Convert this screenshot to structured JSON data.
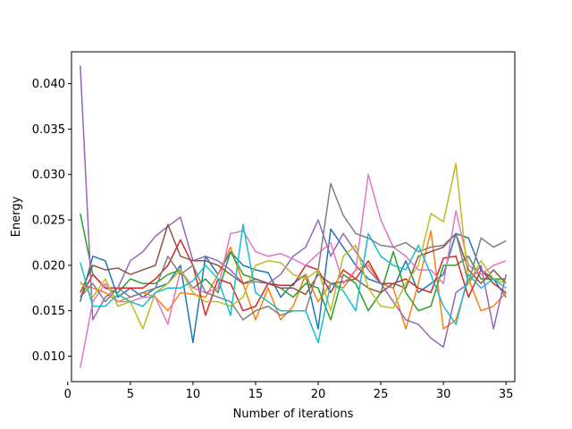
{
  "chart_data": {
    "type": "line",
    "title": "",
    "xlabel": "Number of iterations",
    "ylabel": "Energy",
    "xlim": [
      0.3,
      35.7
    ],
    "ylim": [
      0.0072,
      0.0435
    ],
    "xticks": [
      0,
      5,
      10,
      15,
      20,
      25,
      30,
      35
    ],
    "yticks": [
      0.01,
      0.015,
      0.02,
      0.025,
      0.03,
      0.035,
      0.04
    ],
    "x_tick_labels": [
      "0",
      "5",
      "10",
      "15",
      "20",
      "25",
      "30",
      "35"
    ],
    "y_tick_labels": [
      "0.010",
      "0.015",
      "0.020",
      "0.025",
      "0.030",
      "0.035",
      "0.040"
    ],
    "grid": false,
    "legend": "none",
    "x": [
      1,
      2,
      3,
      4,
      5,
      6,
      7,
      8,
      9,
      10,
      11,
      12,
      13,
      14,
      15,
      16,
      17,
      18,
      19,
      20,
      21,
      22,
      23,
      24,
      25,
      26,
      27,
      28,
      29,
      30,
      31,
      32,
      33,
      34,
      35
    ],
    "series": [
      {
        "color": "#1f77b4",
        "values": [
          0.016,
          0.021,
          0.0205,
          0.0165,
          0.0175,
          0.0165,
          0.0175,
          0.018,
          0.02,
          0.0115,
          0.021,
          0.019,
          0.0215,
          0.02,
          0.0195,
          0.0192,
          0.0165,
          0.018,
          0.019,
          0.013,
          0.024,
          0.022,
          0.02,
          0.0185,
          0.018,
          0.0175,
          0.0205,
          0.017,
          0.018,
          0.019,
          0.0235,
          0.023,
          0.0195,
          0.0185,
          0.0165
        ]
      },
      {
        "color": "#ff7f0e",
        "values": [
          0.018,
          0.0175,
          0.017,
          0.016,
          0.0165,
          0.017,
          0.0165,
          0.015,
          0.017,
          0.0168,
          0.0165,
          0.019,
          0.022,
          0.018,
          0.014,
          0.0175,
          0.014,
          0.0155,
          0.019,
          0.016,
          0.018,
          0.0175,
          0.0195,
          0.02,
          0.018,
          0.0175,
          0.013,
          0.018,
          0.0238,
          0.013,
          0.014,
          0.0185,
          0.015,
          0.0155,
          0.017
        ]
      },
      {
        "color": "#2ca02c",
        "values": [
          0.0257,
          0.019,
          0.0175,
          0.017,
          0.0185,
          0.018,
          0.018,
          0.019,
          0.0195,
          0.0175,
          0.0185,
          0.017,
          0.0215,
          0.019,
          0.0185,
          0.018,
          0.0175,
          0.0165,
          0.018,
          0.0175,
          0.014,
          0.019,
          0.018,
          0.015,
          0.017,
          0.0215,
          0.017,
          0.015,
          0.0155,
          0.02,
          0.02,
          0.021,
          0.0185,
          0.0185,
          0.0185
        ]
      },
      {
        "color": "#d62728",
        "values": [
          0.0165,
          0.019,
          0.0175,
          0.0175,
          0.0175,
          0.0175,
          0.0185,
          0.02,
          0.0228,
          0.02,
          0.0145,
          0.0185,
          0.018,
          0.015,
          0.0155,
          0.018,
          0.0178,
          0.0178,
          0.02,
          0.0195,
          0.017,
          0.0195,
          0.0185,
          0.0205,
          0.018,
          0.018,
          0.0185,
          0.0175,
          0.017,
          0.0208,
          0.021,
          0.0165,
          0.0195,
          0.018,
          0.017
        ]
      },
      {
        "color": "#9467bd",
        "values": [
          0.042,
          0.014,
          0.0165,
          0.0175,
          0.0205,
          0.0215,
          0.0232,
          0.0243,
          0.0253,
          0.0205,
          0.021,
          0.0205,
          0.0195,
          0.018,
          0.0182,
          0.018,
          0.019,
          0.021,
          0.022,
          0.025,
          0.021,
          0.0235,
          0.0215,
          0.0195,
          0.018,
          0.016,
          0.014,
          0.0135,
          0.012,
          0.011,
          0.017,
          0.018,
          0.02,
          0.013,
          0.019
        ]
      },
      {
        "color": "#8c564b",
        "values": [
          0.017,
          0.02,
          0.0195,
          0.0197,
          0.019,
          0.0195,
          0.02,
          0.0245,
          0.021,
          0.0205,
          0.0205,
          0.02,
          0.019,
          0.018,
          0.0185,
          0.018,
          0.0175,
          0.0175,
          0.0168,
          0.019,
          0.018,
          0.0182,
          0.0185,
          0.0175,
          0.017,
          0.018,
          0.0175,
          0.021,
          0.0215,
          0.022,
          0.0235,
          0.0195,
          0.018,
          0.0195,
          0.018
        ]
      },
      {
        "color": "#e377c2",
        "values": [
          0.0087,
          0.016,
          0.018,
          0.016,
          0.016,
          0.0165,
          0.0165,
          0.0135,
          0.0195,
          0.0175,
          0.017,
          0.0175,
          0.0235,
          0.0238,
          0.0215,
          0.021,
          0.0213,
          0.0207,
          0.02,
          0.0213,
          0.0225,
          0.018,
          0.0195,
          0.03,
          0.025,
          0.022,
          0.021,
          0.0195,
          0.0195,
          0.018,
          0.026,
          0.02,
          0.019,
          0.02,
          0.0205
        ]
      },
      {
        "color": "#7f7f7f",
        "values": [
          0.0165,
          0.018,
          0.016,
          0.0175,
          0.0165,
          0.017,
          0.0175,
          0.021,
          0.019,
          0.02,
          0.017,
          0.0165,
          0.016,
          0.014,
          0.015,
          0.0155,
          0.0145,
          0.015,
          0.015,
          0.0195,
          0.029,
          0.0255,
          0.0235,
          0.023,
          0.0222,
          0.022,
          0.0225,
          0.0215,
          0.022,
          0.0222,
          0.0235,
          0.018,
          0.023,
          0.022,
          0.0227
        ]
      },
      {
        "color": "#bcbd22",
        "values": [
          0.0182,
          0.0165,
          0.0185,
          0.0155,
          0.016,
          0.013,
          0.017,
          0.018,
          0.0195,
          0.017,
          0.016,
          0.016,
          0.0155,
          0.0165,
          0.02,
          0.0205,
          0.0203,
          0.019,
          0.0185,
          0.0195,
          0.015,
          0.021,
          0.0222,
          0.0175,
          0.0155,
          0.0153,
          0.018,
          0.02,
          0.0257,
          0.0248,
          0.0312,
          0.018,
          0.0205,
          0.0185,
          0.018
        ]
      },
      {
        "color": "#17becf",
        "values": [
          0.0203,
          0.0155,
          0.0155,
          0.0168,
          0.016,
          0.0155,
          0.017,
          0.0175,
          0.0175,
          0.0183,
          0.02,
          0.0185,
          0.0145,
          0.0245,
          0.017,
          0.016,
          0.015,
          0.015,
          0.015,
          0.0115,
          0.018,
          0.0172,
          0.015,
          0.0235,
          0.021,
          0.02,
          0.0195,
          0.0222,
          0.019,
          0.0155,
          0.0135,
          0.019,
          0.0175,
          0.0185,
          0.0175
        ]
      }
    ]
  }
}
